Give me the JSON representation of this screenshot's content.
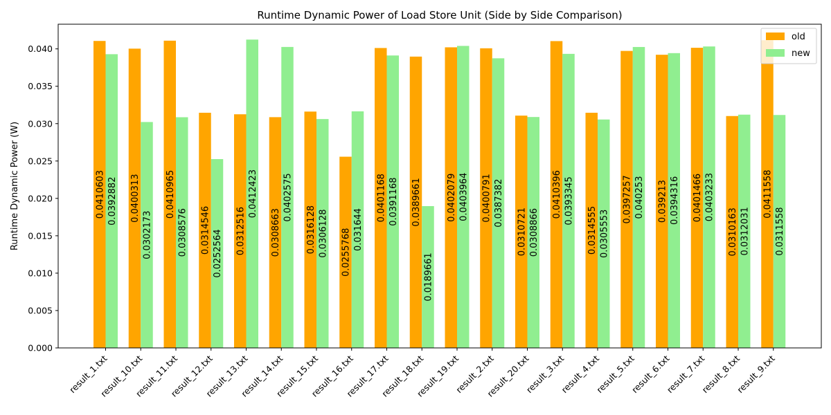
{
  "chart_data": {
    "type": "bar",
    "title": "Runtime Dynamic Power of Load Store Unit (Side by Side Comparison)",
    "xlabel": "",
    "ylabel": "Runtime Dynamic Power (W)",
    "ylim": [
      0,
      0.0433
    ],
    "yticks": [
      "0.000",
      "0.005",
      "0.010",
      "0.015",
      "0.020",
      "0.025",
      "0.030",
      "0.035",
      "0.040"
    ],
    "yticks_values": [
      0,
      0.005,
      0.01,
      0.015,
      0.02,
      0.025,
      0.03,
      0.035,
      0.04
    ],
    "grid": false,
    "legend_position": "top-right",
    "categories": [
      "result_1.txt",
      "result_10.txt",
      "result_11.txt",
      "result_12.txt",
      "result_13.txt",
      "result_14.txt",
      "result_15.txt",
      "result_16.txt",
      "result_17.txt",
      "result_18.txt",
      "result_19.txt",
      "result_2.txt",
      "result_20.txt",
      "result_3.txt",
      "result_4.txt",
      "result_5.txt",
      "result_6.txt",
      "result_7.txt",
      "result_8.txt",
      "result_9.txt"
    ],
    "series": [
      {
        "name": "old",
        "color": "#FFA500",
        "values": [
          0.0410603,
          0.0400313,
          0.0410965,
          0.0314546,
          0.0312516,
          0.0308663,
          0.0316128,
          0.0255768,
          0.0401168,
          0.0389661,
          0.0402079,
          0.0400791,
          0.0310721,
          0.0410396,
          0.0314555,
          0.0397257,
          0.039213,
          0.0401466,
          0.0310163,
          0.0411558
        ],
        "labels": [
          "0.0410603",
          "0.0400313",
          "0.0410965",
          "0.0314546",
          "0.0312516",
          "0.0308663",
          "0.0316128",
          "0.0255768",
          "0.0401168",
          "0.0389661",
          "0.0402079",
          "0.0400791",
          "0.0310721",
          "0.0410396",
          "0.0314555",
          "0.0397257",
          "0.039213",
          "0.0401466",
          "0.0310163",
          "0.0411558"
        ]
      },
      {
        "name": "new",
        "color": "#90EE90",
        "values": [
          0.0392882,
          0.0302173,
          0.0308576,
          0.0252564,
          0.0412423,
          0.0402575,
          0.0306128,
          0.031644,
          0.0391168,
          0.0189661,
          0.0403964,
          0.0387382,
          0.0308866,
          0.0393345,
          0.0305553,
          0.040253,
          0.0394316,
          0.0403233,
          0.0312031,
          0.0311558
        ],
        "labels": [
          "0.0392882",
          "0.0302173",
          "0.0308576",
          "0.0252564",
          "0.0412423",
          "0.0402575",
          "0.0306128",
          "0.031644",
          "0.0391168",
          "0.0189661",
          "0.0403964",
          "0.0387382",
          "0.0308866",
          "0.0393345",
          "0.0305553",
          "0.040253",
          "0.0394316",
          "0.0403233",
          "0.0312031",
          "0.0311558"
        ]
      }
    ]
  }
}
